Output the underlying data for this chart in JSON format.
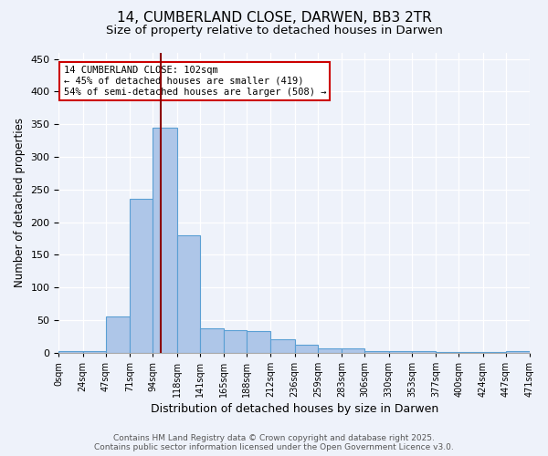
{
  "title_line1": "14, CUMBERLAND CLOSE, DARWEN, BB3 2TR",
  "title_line2": "Size of property relative to detached houses in Darwen",
  "xlabel": "Distribution of detached houses by size in Darwen",
  "ylabel": "Number of detached properties",
  "bin_edges": [
    0,
    24,
    47,
    71,
    94,
    118,
    141,
    165,
    188,
    212,
    236,
    259,
    283,
    306,
    330,
    353,
    377,
    400,
    424,
    447,
    471
  ],
  "bar_heights": [
    3,
    3,
    55,
    235,
    345,
    180,
    37,
    35,
    33,
    20,
    12,
    6,
    6,
    3,
    3,
    2,
    1,
    1,
    1,
    3
  ],
  "bar_color": "#aec6e8",
  "bar_edge_color": "#5a9fd4",
  "property_size": 102,
  "vline_color": "#8b0000",
  "annotation_text": "14 CUMBERLAND CLOSE: 102sqm\n← 45% of detached houses are smaller (419)\n54% of semi-detached houses are larger (508) →",
  "annotation_box_color": "#ffffff",
  "annotation_box_edge_color": "#cc0000",
  "ylim": [
    0,
    460
  ],
  "background_color": "#eef2fa",
  "footer_text": "Contains HM Land Registry data © Crown copyright and database right 2025.\nContains public sector information licensed under the Open Government Licence v3.0.",
  "tick_labels": [
    "0sqm",
    "24sqm",
    "47sqm",
    "71sqm",
    "94sqm",
    "118sqm",
    "141sqm",
    "165sqm",
    "188sqm",
    "212sqm",
    "236sqm",
    "259sqm",
    "283sqm",
    "306sqm",
    "330sqm",
    "353sqm",
    "377sqm",
    "400sqm",
    "424sqm",
    "447sqm",
    "471sqm"
  ],
  "yticks": [
    0,
    50,
    100,
    150,
    200,
    250,
    300,
    350,
    400,
    450
  ]
}
